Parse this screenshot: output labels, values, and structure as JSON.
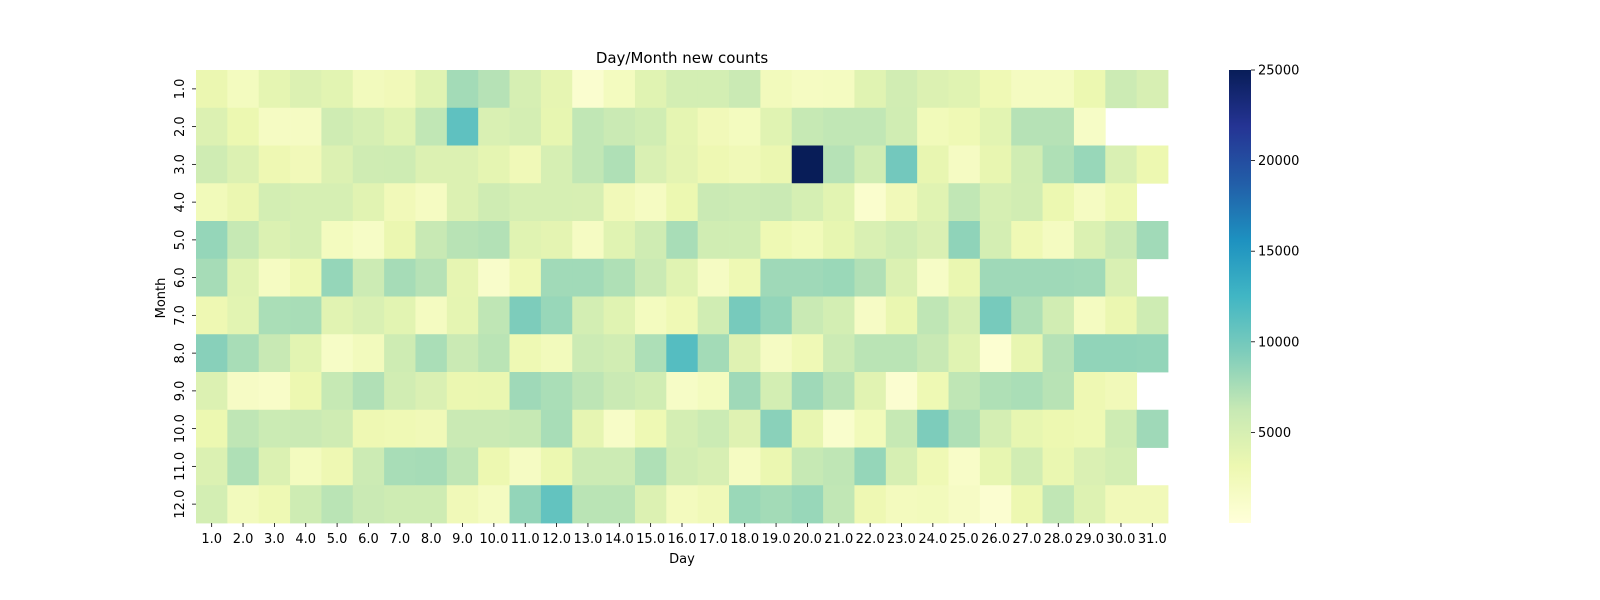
{
  "chart_data": {
    "type": "heatmap",
    "title": "Day/Month new counts",
    "xlabel": "Day",
    "ylabel": "Month",
    "x_categories": [
      "1.0",
      "2.0",
      "3.0",
      "4.0",
      "5.0",
      "6.0",
      "7.0",
      "8.0",
      "9.0",
      "10.0",
      "11.0",
      "12.0",
      "13.0",
      "14.0",
      "15.0",
      "16.0",
      "17.0",
      "18.0",
      "19.0",
      "20.0",
      "21.0",
      "22.0",
      "23.0",
      "24.0",
      "25.0",
      "26.0",
      "27.0",
      "28.0",
      "29.0",
      "30.0",
      "31.0"
    ],
    "y_categories": [
      "1.0",
      "2.0",
      "3.0",
      "4.0",
      "5.0",
      "6.0",
      "7.0",
      "8.0",
      "9.0",
      "10.0",
      "11.0",
      "12.0"
    ],
    "values": [
      [
        3300,
        2000,
        3800,
        4500,
        4000,
        2200,
        2500,
        4200,
        7800,
        7000,
        5000,
        3700,
        800,
        2000,
        4200,
        5300,
        5300,
        6000,
        2300,
        1800,
        1900,
        4200,
        5400,
        4500,
        4200,
        2800,
        1900,
        1900,
        3200,
        5800,
        4900
      ],
      [
        4500,
        3200,
        1700,
        1700,
        5600,
        5000,
        4200,
        6500,
        11000,
        4800,
        5200,
        3600,
        6500,
        6000,
        5500,
        3800,
        2500,
        2000,
        4200,
        6300,
        6500,
        6500,
        5500,
        2400,
        2800,
        4000,
        7000,
        7000,
        1500,
        null,
        null
      ],
      [
        5600,
        4500,
        3000,
        2500,
        4500,
        5600,
        5700,
        4500,
        4500,
        3800,
        2600,
        5000,
        6500,
        7300,
        4800,
        3900,
        3000,
        2600,
        3300,
        25000,
        7000,
        5500,
        10000,
        3500,
        1700,
        3500,
        5500,
        7300,
        8300,
        4800,
        3100
      ],
      [
        2400,
        3300,
        5300,
        5000,
        5000,
        4100,
        2500,
        1800,
        4500,
        5600,
        5000,
        5000,
        4900,
        2500,
        1800,
        3200,
        6000,
        5800,
        6000,
        5100,
        4000,
        900,
        2500,
        4200,
        6500,
        5000,
        5400,
        3200,
        1800,
        2900,
        null
      ],
      [
        8400,
        6300,
        4600,
        5000,
        2000,
        1500,
        3300,
        6200,
        6900,
        7100,
        4200,
        3900,
        1700,
        4200,
        5600,
        7600,
        5500,
        5500,
        2900,
        2400,
        3600,
        4800,
        5500,
        4700,
        8700,
        5200,
        2800,
        1900,
        4600,
        6000,
        7900
      ],
      [
        7700,
        4200,
        1800,
        2900,
        8400,
        5800,
        7700,
        7000,
        3700,
        1200,
        2800,
        7900,
        7900,
        7300,
        6000,
        4200,
        1700,
        2900,
        8000,
        8000,
        8200,
        7200,
        4600,
        1500,
        3400,
        8000,
        8000,
        8000,
        7900,
        4800,
        null
      ],
      [
        3000,
        4000,
        7500,
        7600,
        4100,
        4800,
        4000,
        1900,
        3800,
        6600,
        9500,
        8300,
        5300,
        4200,
        2000,
        2800,
        5500,
        9800,
        8500,
        6100,
        5300,
        1600,
        3400,
        6600,
        5000,
        9800,
        7300,
        5400,
        1900,
        3300,
        5700
      ],
      [
        9000,
        7600,
        6200,
        4000,
        1500,
        2200,
        5700,
        7500,
        6000,
        6800,
        2900,
        2300,
        5800,
        5400,
        7400,
        11500,
        7800,
        4300,
        1700,
        2700,
        5800,
        6800,
        6800,
        6200,
        4200,
        600,
        3500,
        7000,
        8600,
        8600,
        8500
      ],
      [
        4500,
        1600,
        1300,
        3100,
        6300,
        7200,
        5400,
        4700,
        3300,
        3400,
        8000,
        7500,
        6700,
        6000,
        5500,
        1500,
        2000,
        8000,
        5300,
        8000,
        6900,
        4100,
        700,
        2900,
        6600,
        7300,
        7500,
        6900,
        3000,
        2500,
        null
      ],
      [
        3200,
        6600,
        5900,
        6000,
        5600,
        3000,
        2800,
        2600,
        6000,
        6000,
        6300,
        7600,
        3700,
        1400,
        2900,
        5200,
        5900,
        4300,
        8900,
        3500,
        1000,
        2400,
        6300,
        9500,
        7300,
        5200,
        3600,
        3100,
        2900,
        5700,
        8000
      ],
      [
        4600,
        7300,
        4600,
        2000,
        3000,
        5800,
        7600,
        7700,
        6600,
        3100,
        1700,
        3200,
        5800,
        5800,
        7300,
        5400,
        4900,
        1800,
        3300,
        6300,
        6600,
        8400,
        5000,
        2800,
        1300,
        3600,
        5400,
        3400,
        4700,
        5300,
        null
      ],
      [
        5300,
        2200,
        2900,
        5700,
        6800,
        6000,
        5700,
        5700,
        2600,
        1900,
        8500,
        10800,
        6800,
        6800,
        4500,
        2100,
        2600,
        8200,
        7800,
        8300,
        6500,
        3000,
        2100,
        2300,
        1600,
        700,
        3100,
        6500,
        4400,
        2500,
        2500
      ]
    ],
    "colorbar": {
      "min": 0,
      "max": 25000,
      "ticks": [
        5000,
        10000,
        15000,
        20000,
        25000
      ]
    },
    "colormap": "YlGnBu"
  }
}
